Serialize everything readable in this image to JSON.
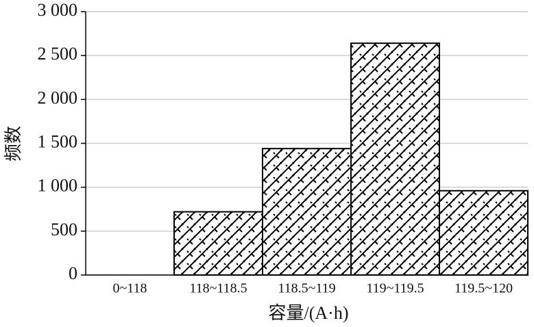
{
  "chart_data": {
    "type": "bar",
    "x_label": "容量/(A·h)",
    "y_label": "频数",
    "categories": [
      "0~118",
      "118~118.5",
      "118.5~119",
      "119~119.5",
      "119.5~120"
    ],
    "values": [
      0,
      720,
      1440,
      2640,
      960
    ],
    "ylim": [
      0,
      3000
    ],
    "yticks": [
      0,
      500,
      {
        "value": 1000,
        "label": "1 000"
      },
      {
        "value": 1500,
        "label": "1 500"
      },
      {
        "value": 2000,
        "label": "2 000"
      },
      {
        "value": 2500,
        "label": "2 500"
      },
      {
        "value": 3000,
        "label": "3 000"
      }
    ],
    "grid": true
  }
}
